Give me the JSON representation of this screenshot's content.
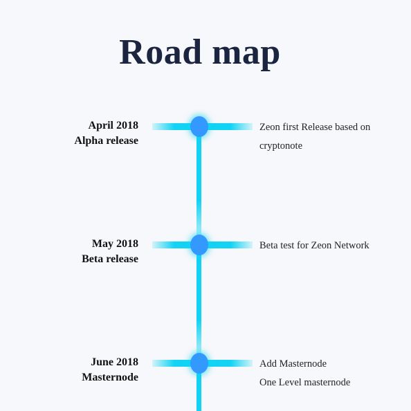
{
  "page": {
    "title": "Road map",
    "colors": {
      "background": "#f6f8fb",
      "title": "#1c2540",
      "timeline_line": "#12d3f3",
      "node": "#3399ff"
    }
  },
  "milestones": [
    {
      "date": "April 2018",
      "label": "Alpha release",
      "description": "Zeon first Release based on cryptonote",
      "description_extra": ""
    },
    {
      "date": "May 2018",
      "label": "Beta release",
      "description": "Beta test for Zeon Network",
      "description_extra": ""
    },
    {
      "date": "June 2018",
      "label": "Masternode",
      "description": "Add Masternode",
      "description_extra": "One Level masternode"
    }
  ]
}
